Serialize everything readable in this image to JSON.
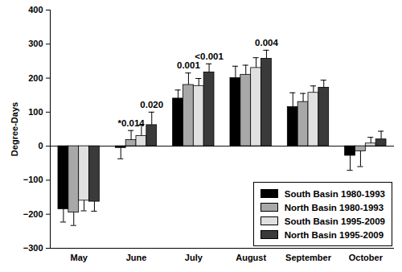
{
  "chart_data": {
    "type": "bar",
    "categories": [
      "May",
      "June",
      "July",
      "August",
      "September",
      "October"
    ],
    "series": [
      {
        "name": "South Basin 1980-1993",
        "color": "#000000",
        "values": [
          -185,
          -5,
          140,
          200,
          115,
          -28
        ],
        "errors": [
          38,
          32,
          25,
          35,
          42,
          43
        ]
      },
      {
        "name": "North Basin 1980-1993",
        "color": "#a8a8a8",
        "values": [
          -195,
          18,
          180,
          210,
          130,
          -15
        ],
        "errors": [
          38,
          28,
          35,
          28,
          25,
          45
        ]
      },
      {
        "name": "South Basin 1995-2009",
        "color": "#e0e0e0",
        "values": [
          -160,
          30,
          177,
          230,
          157,
          8
        ],
        "errors": [
          30,
          32,
          22,
          30,
          20,
          18
        ]
      },
      {
        "name": "North Basin 1995-2009",
        "color": "#3a3a3a",
        "values": [
          -163,
          62,
          217,
          257,
          172,
          20
        ],
        "errors": [
          28,
          38,
          25,
          25,
          22,
          24
        ]
      }
    ],
    "ylabel": "Degree-Days",
    "ylim": [
      -300,
      400
    ],
    "yticks": [
      -300,
      -200,
      -100,
      0,
      100,
      200,
      300,
      400
    ],
    "legend": "bottom-right",
    "annotations": [
      {
        "text": "*0.014",
        "category": "June",
        "series": "North Basin 1980-1993"
      },
      {
        "text": "0.020",
        "category": "June",
        "series": "North Basin 1995-2009"
      },
      {
        "text": "0.001",
        "category": "July",
        "series": "North Basin 1980-1993"
      },
      {
        "text": "<0.001",
        "category": "July",
        "series": "North Basin 1995-2009"
      },
      {
        "text": "0.004",
        "category": "August",
        "series": "North Basin 1995-2009"
      }
    ]
  }
}
